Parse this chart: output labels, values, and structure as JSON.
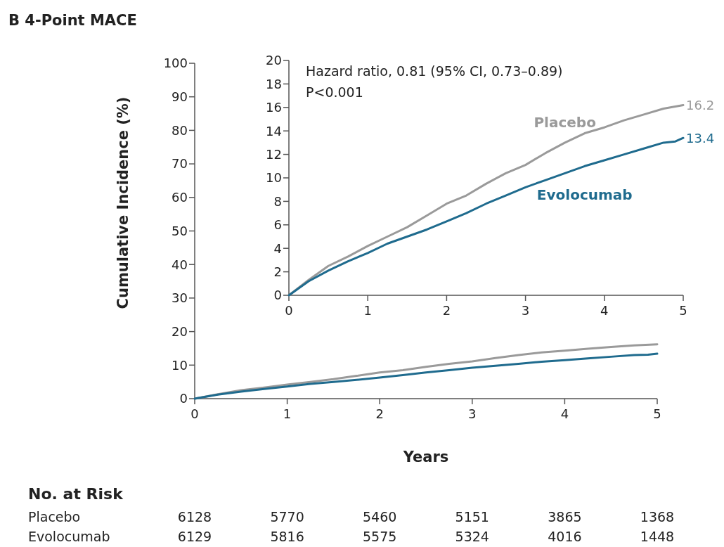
{
  "chart_data": [
    {
      "type": "line",
      "title": "B 4-Point MACE",
      "xlabel": "Years",
      "ylabel": "Cumulative Incidence (%)",
      "xlim": [
        0,
        5
      ],
      "ylim": [
        0,
        100
      ],
      "xticks": [
        0,
        1,
        2,
        3,
        4,
        5
      ],
      "yticks": [
        0,
        10,
        20,
        30,
        40,
        50,
        60,
        70,
        80,
        90,
        100
      ],
      "grid": false,
      "series": [
        {
          "color": "#9a9a9a",
          "x": [
            0,
            0.25,
            0.5,
            0.75,
            1,
            1.25,
            1.5,
            1.75,
            2,
            2.25,
            2.5,
            2.75,
            3,
            3.25,
            3.5,
            3.75,
            4,
            4.25,
            4.5,
            4.75,
            5
          ],
          "values": [
            0,
            1.3,
            2.5,
            3.3,
            4.2,
            5.0,
            5.8,
            6.8,
            7.8,
            8.5,
            9.5,
            10.4,
            11.1,
            12.1,
            13.0,
            13.8,
            14.3,
            14.9,
            15.4,
            15.9,
            16.2
          ]
        },
        {
          "color": "#1f6b8e",
          "x": [
            0,
            0.25,
            0.5,
            0.75,
            1,
            1.25,
            1.5,
            1.75,
            2,
            2.25,
            2.5,
            2.75,
            3,
            3.25,
            3.5,
            3.75,
            4,
            4.25,
            4.5,
            4.75,
            4.9,
            5
          ],
          "values": [
            0,
            1.2,
            2.1,
            2.9,
            3.6,
            4.4,
            5.0,
            5.6,
            6.3,
            7.0,
            7.8,
            8.5,
            9.2,
            9.8,
            10.4,
            11.0,
            11.5,
            12.0,
            12.5,
            13.0,
            13.1,
            13.4
          ]
        }
      ],
      "annotations": [
        "No. at Risk",
        "Placebo",
        "6128",
        "5770",
        "5460",
        "5151",
        "3865",
        "1368",
        "Evolocumab",
        "6129",
        "5816",
        "5575",
        "5324",
        "4016",
        "1448"
      ]
    },
    {
      "type": "line",
      "xlim": [
        0,
        5
      ],
      "ylim": [
        0,
        20
      ],
      "xticks": [
        0,
        1,
        2,
        3,
        4,
        5
      ],
      "yticks": [
        0,
        2,
        4,
        6,
        8,
        10,
        12,
        14,
        16,
        18,
        20
      ],
      "grid": false,
      "series": [
        {
          "name": "Placebo",
          "color": "#9a9a9a",
          "x": [
            0,
            0.25,
            0.5,
            0.75,
            1,
            1.25,
            1.5,
            1.75,
            2,
            2.25,
            2.5,
            2.75,
            3,
            3.25,
            3.5,
            3.75,
            4,
            4.25,
            4.5,
            4.75,
            5
          ],
          "values": [
            0,
            1.3,
            2.5,
            3.3,
            4.2,
            5.0,
            5.8,
            6.8,
            7.8,
            8.5,
            9.5,
            10.4,
            11.1,
            12.1,
            13.0,
            13.8,
            14.3,
            14.9,
            15.4,
            15.9,
            16.2
          ],
          "value_labels": [
            null,
            null,
            null,
            null,
            null,
            null,
            null,
            null,
            null,
            null,
            null,
            null,
            null,
            null,
            null,
            null,
            null,
            null,
            null,
            null,
            "16.2"
          ]
        },
        {
          "name": "Evolocumab",
          "color": "#1f6b8e",
          "x": [
            0,
            0.25,
            0.5,
            0.75,
            1,
            1.25,
            1.5,
            1.75,
            2,
            2.25,
            2.5,
            2.75,
            3,
            3.25,
            3.5,
            3.75,
            4,
            4.25,
            4.5,
            4.75,
            4.9,
            5
          ],
          "values": [
            0,
            1.2,
            2.1,
            2.9,
            3.6,
            4.4,
            5.0,
            5.6,
            6.3,
            7.0,
            7.8,
            8.5,
            9.2,
            9.8,
            10.4,
            11.0,
            11.5,
            12.0,
            12.5,
            13.0,
            13.1,
            13.4
          ],
          "value_labels": [
            null,
            null,
            null,
            null,
            null,
            null,
            null,
            null,
            null,
            null,
            null,
            null,
            null,
            null,
            null,
            null,
            null,
            null,
            null,
            null,
            null,
            "13.4"
          ]
        }
      ],
      "annotations": [
        "Hazard ratio, 0.81 (95% CI, 0.73–0.89)",
        "P<0.001"
      ]
    }
  ]
}
